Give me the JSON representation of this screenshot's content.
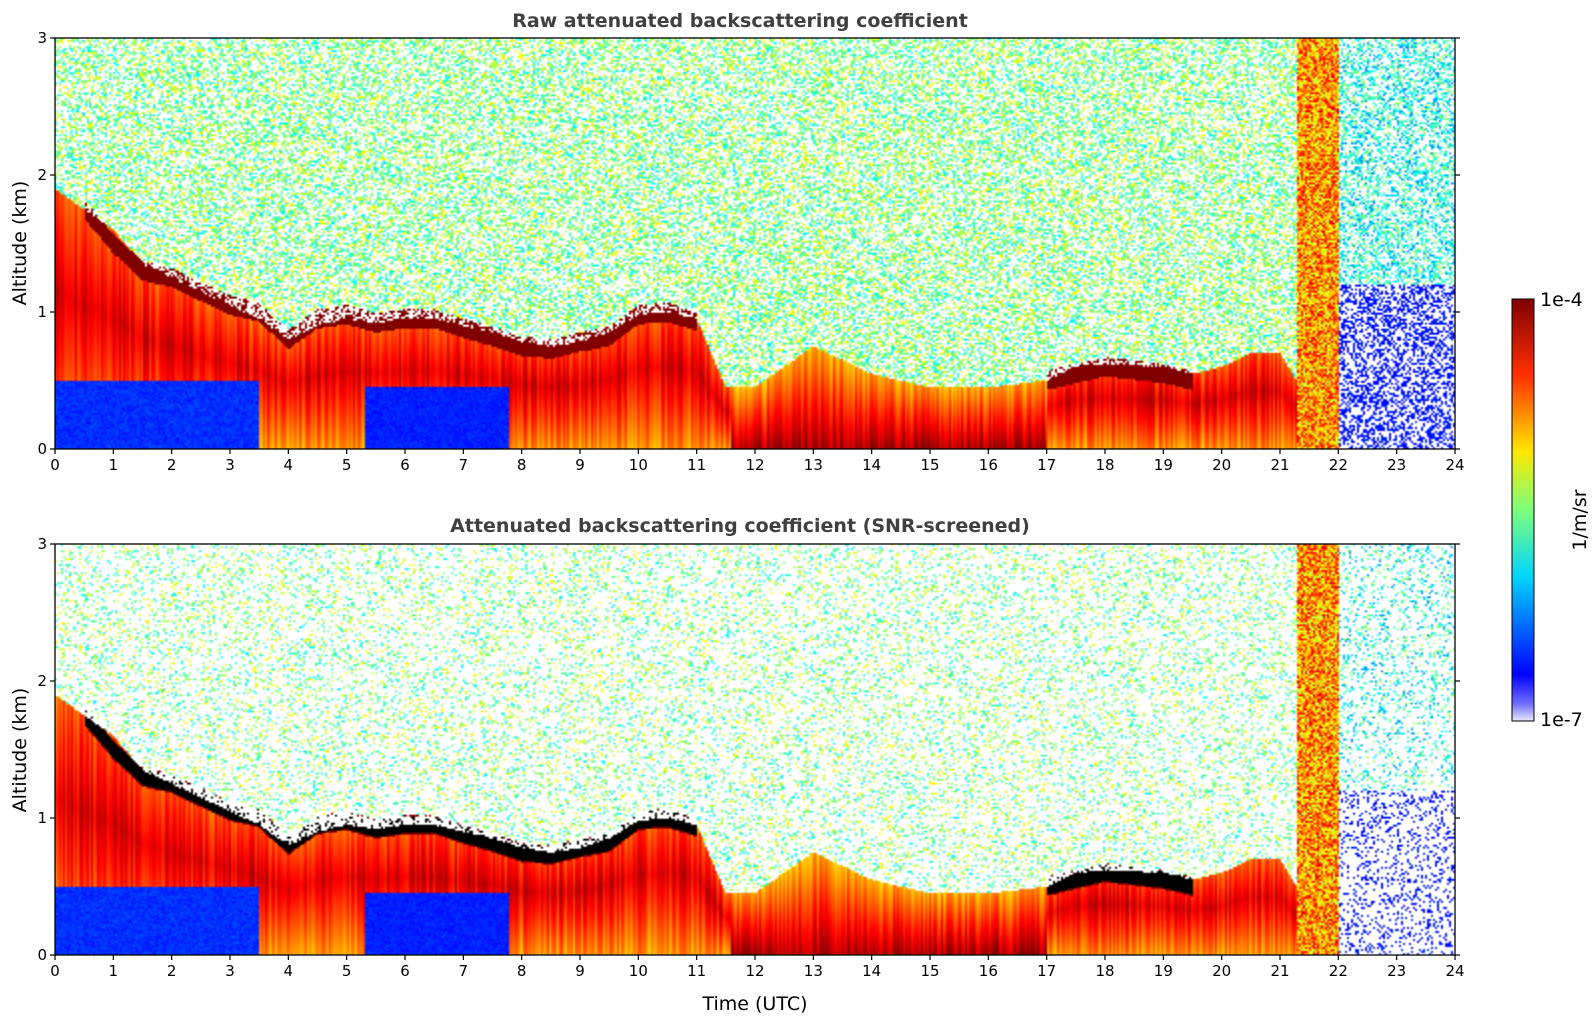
{
  "chart_data": [
    {
      "type": "heatmap",
      "title": "Raw attenuated backscattering coefficient",
      "xlabel": "",
      "ylabel": "Altitude (km)",
      "xlim": [
        0,
        24
      ],
      "ylim": [
        0,
        3
      ],
      "x_ticks": [
        0,
        1,
        2,
        3,
        4,
        5,
        6,
        7,
        8,
        9,
        10,
        11,
        12,
        13,
        14,
        15,
        16,
        17,
        18,
        19,
        20,
        21,
        22,
        23,
        24
      ],
      "y_ticks": [
        0,
        1,
        2,
        3
      ],
      "screened": false,
      "layers": {
        "time_utc": [
          0,
          0.5,
          1,
          1.5,
          2,
          2.5,
          3,
          3.5,
          4,
          4.5,
          5,
          5.5,
          6,
          6.5,
          7,
          7.5,
          8,
          8.5,
          9,
          9.5,
          10,
          10.5,
          11,
          11.5,
          12,
          13,
          14,
          15,
          16,
          17,
          17.5,
          18,
          19,
          19.5,
          20,
          20.5,
          21,
          22,
          23,
          24
        ],
        "boundary_layer_top_km": [
          1.9,
          1.75,
          1.6,
          1.35,
          1.25,
          1.15,
          1.05,
          0.95,
          0.8,
          0.9,
          0.95,
          0.92,
          0.95,
          0.95,
          0.9,
          0.85,
          0.78,
          0.75,
          0.78,
          0.85,
          0.98,
          1.0,
          0.95,
          0.45,
          0.45,
          0.75,
          0.55,
          0.45,
          0.45,
          0.5,
          0.6,
          0.62,
          0.6,
          0.55,
          0.6,
          0.7,
          0.7,
          0.0,
          0.0,
          0.0
        ],
        "strong_layer_km": [
          null,
          1.75,
          1.5,
          1.3,
          1.25,
          1.15,
          1.05,
          1.0,
          0.8,
          0.95,
          0.98,
          0.92,
          0.95,
          0.95,
          0.88,
          0.82,
          0.75,
          0.73,
          0.78,
          0.82,
          0.98,
          1.0,
          0.93,
          null,
          null,
          null,
          null,
          null,
          null,
          0.5,
          0.55,
          0.6,
          0.55,
          0.5,
          null,
          null,
          null,
          null,
          null,
          null
        ]
      }
    },
    {
      "type": "heatmap",
      "title": "Attenuated backscattering coefficient (SNR-screened)",
      "xlabel": "Time (UTC)",
      "ylabel": "Altitude (km)",
      "xlim": [
        0,
        24
      ],
      "ylim": [
        0,
        3
      ],
      "x_ticks": [
        0,
        1,
        2,
        3,
        4,
        5,
        6,
        7,
        8,
        9,
        10,
        11,
        12,
        13,
        14,
        15,
        16,
        17,
        18,
        19,
        20,
        21,
        22,
        23,
        24
      ],
      "y_ticks": [
        0,
        1,
        2,
        3
      ],
      "screened": true
    }
  ],
  "colorbar": {
    "label": "1/m/sr",
    "max_label": "1e-4",
    "min_label": "1e-7",
    "colormap": "jet",
    "scale": "log",
    "range": [
      1e-07,
      0.0001
    ]
  }
}
